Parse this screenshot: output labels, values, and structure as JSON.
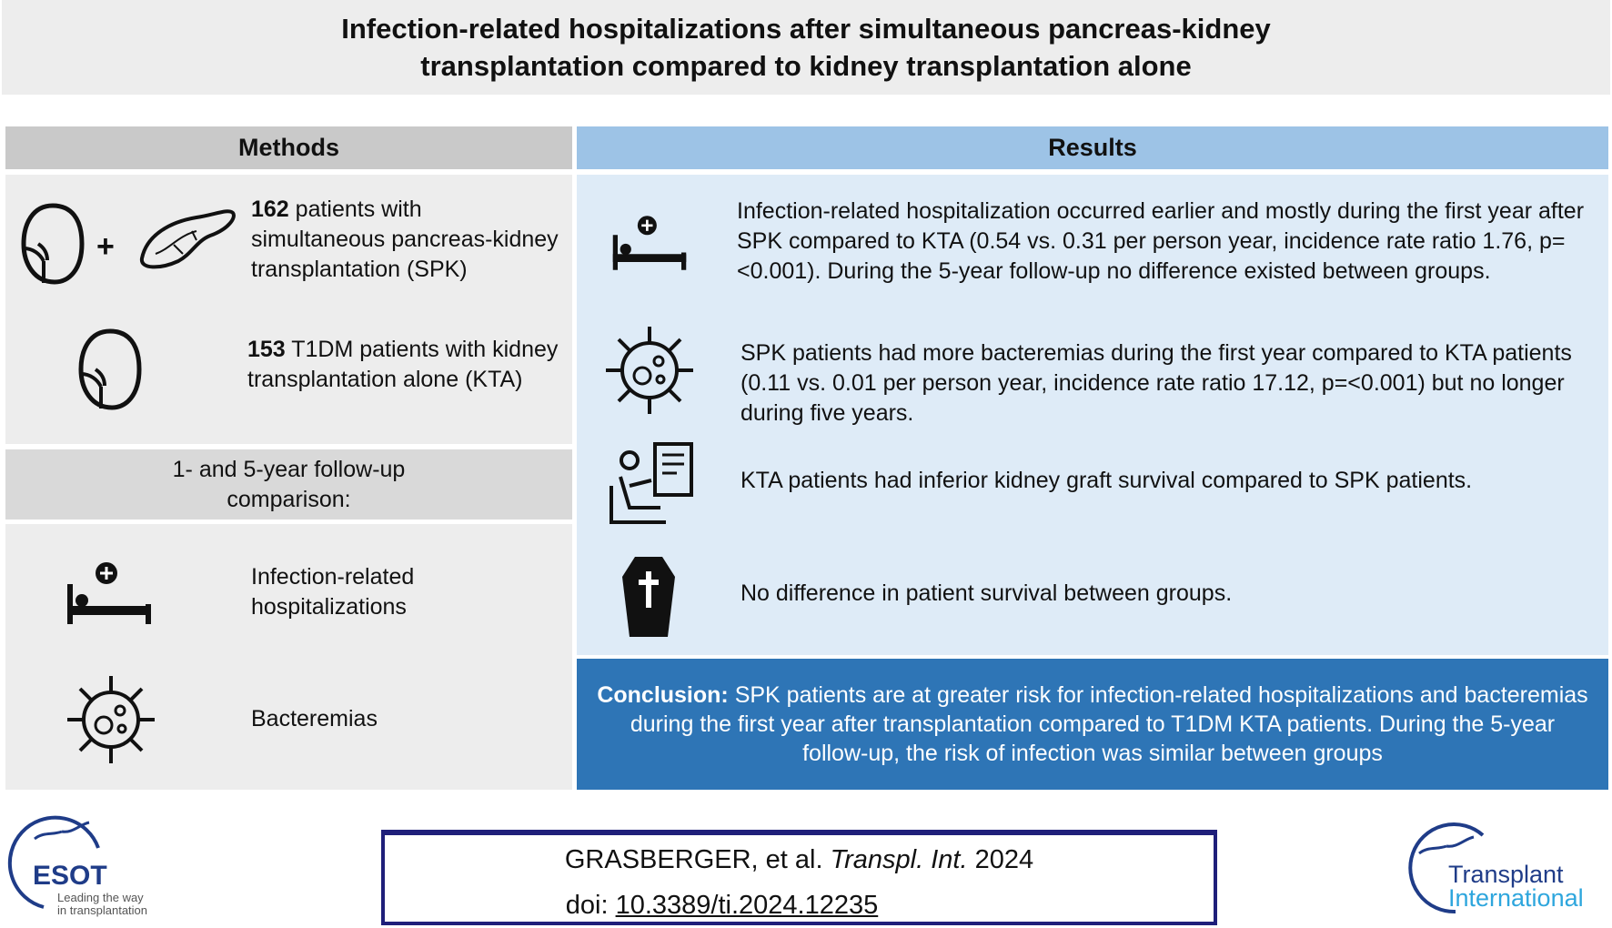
{
  "title": "Infection-related hospitalizations after simultaneous pancreas-kidney\ntransplantation compared to kidney transplantation alone",
  "methods": {
    "header": "Methods",
    "spk_count": "162",
    "spk_text": " patients with simultaneous pancreas-kidney transplantation (SPK)",
    "plus": "+",
    "kta_count": "153",
    "kta_text": " T1DM patients with kidney transplantation alone (KTA)",
    "followup": "1- and 5-year follow-up comparison:",
    "outcome1": "Infection-related hospitalizations",
    "outcome2": "Bacteremias"
  },
  "results": {
    "header": "Results",
    "items": [
      {
        "icon": "hospital-bed-icon",
        "text": "Infection-related hospitalization occurred earlier and mostly during the first year after SPK compared to KTA (0.54 vs. 0.31 per person year, incidence rate ratio 1.76, p=<0.001). During the 5-year follow-up no difference existed between groups."
      },
      {
        "icon": "bacteria-icon",
        "text": "SPK patients had more bacteremias during the first year compared to KTA patients (0.11 vs. 0.01 per person year, incidence rate ratio 17.12, p=<0.001) but no longer during five years."
      },
      {
        "icon": "dialysis-patient-icon",
        "text": "KTA patients had inferior kidney graft survival compared to SPK patients."
      },
      {
        "icon": "coffin-icon",
        "text": "No difference in patient survival between groups."
      }
    ]
  },
  "conclusion": {
    "label": "Conclusion:",
    "text": " SPK patients are at greater risk for infection-related hospitalizations and bacteremias during the first year after transplantation compared to T1DM KTA patients. During the 5-year follow-up, the risk of infection was similar between groups"
  },
  "citation": {
    "authors": "GRASBERGER, et al. ",
    "journal": "Transpl. Int.",
    "year": " 2024",
    "doi_label": "doi: ",
    "doi": "10.3389/ti.2024.12235"
  },
  "logos": {
    "esot": "ESOT",
    "esot_tagline1": "Leading the way",
    "esot_tagline2": "in transplantation",
    "ti1": "Transplant",
    "ti2": "International"
  },
  "colors": {
    "results_header": "#9dc3e6",
    "results_body": "#deebf7",
    "conclusion": "#2e75b6",
    "methods_header": "#c9c9c9",
    "panel": "#ededed",
    "logo_blue": "#1f3c88",
    "logo_light": "#2ea6dd"
  }
}
